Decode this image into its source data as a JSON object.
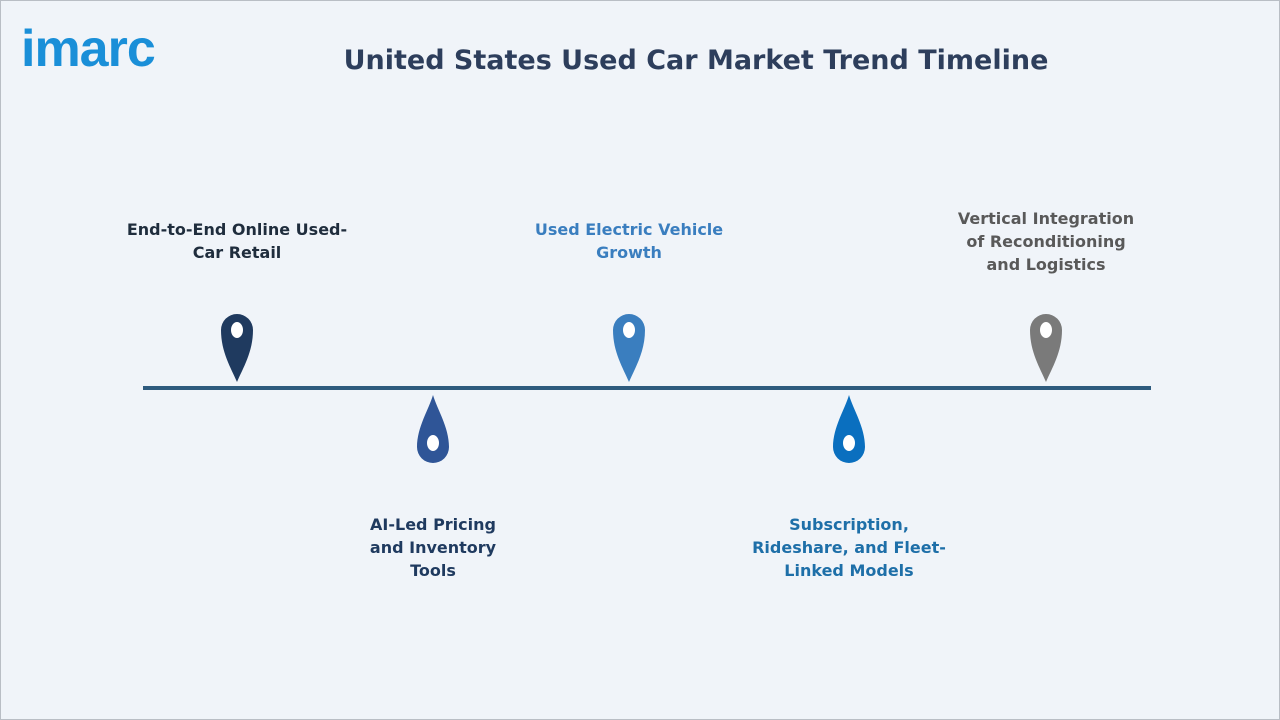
{
  "header": {
    "logo": "imarc",
    "title": "United States Used Car Market Trend Timeline"
  },
  "nodes": [
    {
      "label": "End-to-End Online Used-Car Retail"
    },
    {
      "label": "AI-Led Pricing and Inventory Tools"
    },
    {
      "label": "Used Electric Vehicle Growth"
    },
    {
      "label": "Subscription, Rideshare, and Fleet-Linked Models"
    },
    {
      "label": "Vertical Integration of Reconditioning and Logistics"
    }
  ]
}
